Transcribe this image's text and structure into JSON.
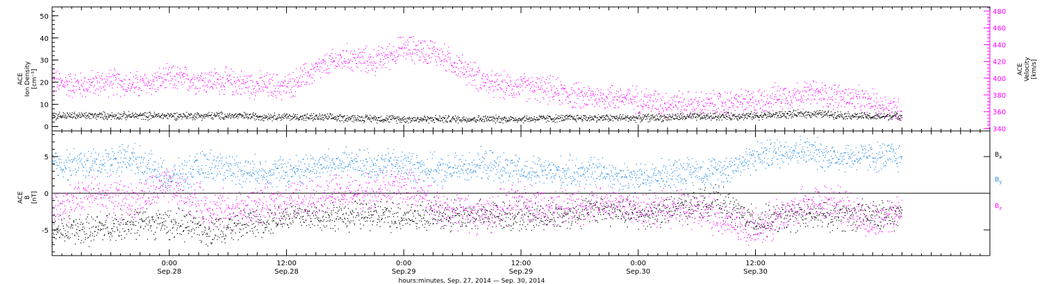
{
  "chart_data": [
    {
      "type": "scatter",
      "panel": "top",
      "left_axis": {
        "label_lines": [
          "ACE",
          "Ion Density",
          "[cm⁻³]"
        ],
        "range": [
          -2,
          54
        ],
        "ticks": [
          0,
          10,
          20,
          30,
          40,
          50
        ]
      },
      "right_axis": {
        "label_lines": [
          "ACE",
          "Velocity",
          "[km/s]"
        ],
        "range": [
          337,
          485
        ],
        "ticks": [
          340,
          360,
          380,
          400,
          420,
          440,
          460,
          480
        ],
        "color": "#ff00ff"
      },
      "series": [
        {
          "axis": "right",
          "color": "#ff00ff",
          "x_hours": [
            0,
            3,
            6,
            9,
            12,
            15,
            18,
            21,
            24,
            27,
            30,
            33,
            36,
            39,
            42,
            45,
            48,
            51,
            54,
            57,
            60,
            63,
            66,
            69,
            72,
            75,
            78,
            81,
            84,
            87
          ],
          "values": [
            395,
            392,
            396,
            392,
            400,
            398,
            396,
            392,
            390,
            410,
            425,
            420,
            436,
            432,
            412,
            392,
            390,
            386,
            378,
            378,
            375,
            370,
            368,
            370,
            372,
            380,
            382,
            378,
            370,
            362
          ]
        },
        {
          "axis": "left",
          "color": "#000000",
          "x_hours": [
            0,
            6,
            12,
            18,
            24,
            30,
            36,
            42,
            48,
            54,
            60,
            66,
            72,
            78,
            84,
            87
          ],
          "values": [
            5,
            5,
            5,
            5,
            4.5,
            4,
            3.5,
            3.5,
            3.5,
            4,
            4,
            4.5,
            5,
            6,
            4.5,
            5
          ]
        }
      ]
    },
    {
      "type": "scatter",
      "panel": "bottom",
      "left_axis": {
        "label_lines": [
          "ACE",
          "B",
          "[nT]"
        ],
        "range": [
          -8.5,
          8.5
        ],
        "ticks": [
          -5,
          0,
          5
        ]
      },
      "zero_line": true,
      "legend": [
        {
          "label": "B",
          "sub": "x",
          "color": "#000000"
        },
        {
          "label": "B",
          "sub": "y",
          "color": "#1e88e5"
        },
        {
          "label": "B",
          "sub": "z",
          "color": "#ff00ff"
        }
      ],
      "series": [
        {
          "name": "Bx",
          "color": "#000000",
          "x_hours": [
            0,
            4,
            8,
            12,
            16,
            20,
            24,
            28,
            32,
            36,
            40,
            44,
            48,
            52,
            56,
            60,
            64,
            68,
            72,
            76,
            80,
            84,
            87
          ],
          "values": [
            -5,
            -5,
            -4,
            -4,
            -5,
            -4,
            -3,
            -3,
            -3,
            -3,
            -3,
            -3,
            -3,
            -3,
            -2,
            -3,
            -2,
            -1,
            -4,
            -3,
            -3,
            -3,
            -3
          ]
        },
        {
          "name": "By",
          "color": "#1e88e5",
          "x_hours": [
            0,
            4,
            8,
            12,
            16,
            20,
            24,
            28,
            32,
            36,
            40,
            44,
            48,
            52,
            56,
            60,
            64,
            68,
            72,
            76,
            80,
            84,
            87
          ],
          "values": [
            4,
            4,
            5,
            2,
            4,
            3,
            3,
            4,
            4,
            4,
            3,
            4,
            3,
            3,
            3,
            2,
            3,
            3,
            5,
            6,
            5,
            5,
            5
          ]
        },
        {
          "name": "Bz",
          "color": "#ff00ff",
          "x_hours": [
            0,
            4,
            8,
            12,
            16,
            20,
            24,
            28,
            32,
            36,
            40,
            44,
            48,
            52,
            56,
            60,
            64,
            68,
            72,
            76,
            80,
            84,
            87
          ],
          "values": [
            -2,
            0,
            -1,
            1,
            -2,
            -2,
            -1,
            0,
            0,
            1,
            -2,
            -3,
            -1,
            -2,
            -1,
            -2,
            -2,
            -3,
            -5,
            -2,
            -1,
            -4,
            -2
          ]
        }
      ]
    }
  ],
  "x_axis": {
    "range_hours": [
      0,
      96
    ],
    "major_ticks": [
      {
        "hours": 12,
        "time": "0:00",
        "date": "Sep.28"
      },
      {
        "hours": 24,
        "time": "12:00",
        "date": "Sep.28"
      },
      {
        "hours": 36,
        "time": "0:00",
        "date": "Sep.29"
      },
      {
        "hours": 48,
        "time": "12:00",
        "date": "Sep.29"
      },
      {
        "hours": 60,
        "time": "0:00",
        "date": "Sep.30"
      },
      {
        "hours": 72,
        "time": "12:00",
        "date": "Sep.30"
      }
    ],
    "title": "hours:minutes, Sep. 27, 2014 — Sep. 30, 2014"
  }
}
